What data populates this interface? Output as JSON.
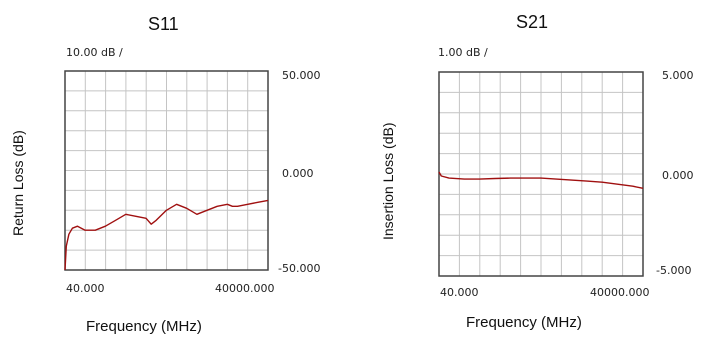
{
  "chart_data": [
    {
      "type": "line",
      "title": "S11",
      "scale_label": "10.00 dB /",
      "ylabel": "Return Loss (dB)",
      "xlabel": "Frequency (MHz)",
      "x_tick_labels": [
        "40.000",
        "40000.000"
      ],
      "y_tick_labels": [
        "50.000",
        "0.000",
        "-50.000"
      ],
      "xlim": [
        40,
        40000
      ],
      "ylim": [
        -50,
        50
      ],
      "grid": true,
      "series": [
        {
          "color": "#a01010",
          "x": [
            40,
            300,
            800,
            1500,
            2500,
            4000,
            6000,
            8000,
            10000,
            12000,
            14000,
            16000,
            17000,
            18000,
            20000,
            22000,
            24000,
            26000,
            28000,
            30000,
            32000,
            33000,
            34000,
            36000,
            38000,
            40000
          ],
          "y": [
            -50,
            -38,
            -32,
            -29,
            -28,
            -30,
            -30,
            -28,
            -25,
            -22,
            -23,
            -24,
            -27,
            -25,
            -20,
            -17,
            -19,
            -22,
            -20,
            -18,
            -17,
            -18,
            -18,
            -17,
            -16,
            -15
          ]
        }
      ]
    },
    {
      "type": "line",
      "title": "S21",
      "scale_label": "1.00 dB /",
      "ylabel": "Insertion Loss (dB)",
      "xlabel": "Frequency (MHz)",
      "x_tick_labels": [
        "40.000",
        "40000.000"
      ],
      "y_tick_labels": [
        "5.000",
        "0.000",
        "-5.000"
      ],
      "xlim": [
        40,
        40000
      ],
      "ylim": [
        -5,
        5
      ],
      "grid": true,
      "series": [
        {
          "color": "#a01010",
          "x": [
            40,
            500,
            2000,
            5000,
            8000,
            11000,
            14000,
            17000,
            20000,
            23000,
            26000,
            29000,
            32000,
            35000,
            38000,
            40000
          ],
          "y": [
            0.1,
            -0.1,
            -0.2,
            -0.25,
            -0.25,
            -0.22,
            -0.2,
            -0.2,
            -0.2,
            -0.25,
            -0.3,
            -0.35,
            -0.4,
            -0.5,
            -0.6,
            -0.7
          ]
        }
      ]
    }
  ]
}
